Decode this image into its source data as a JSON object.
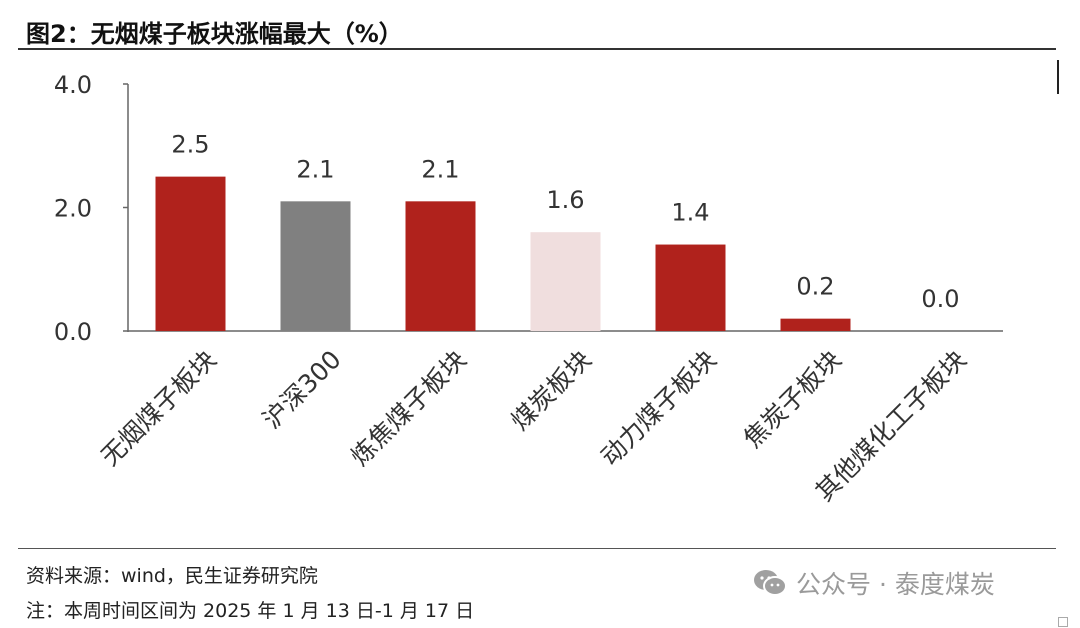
{
  "title": "图2：无烟煤子板块涨幅最大（%）",
  "source": "资料来源：wind，民生证券研究院",
  "note": "注：本周时间区间为 2025 年 1 月 13 日-1 月 17 日",
  "watermark": {
    "icon": "wechat-icon",
    "text": "公众号 · 泰度煤炭"
  },
  "colors": {
    "accent": "#B0221C",
    "benchmark": "#808080",
    "highlight": "#F0DEDE",
    "axis": "#666666"
  },
  "chart_data": {
    "type": "bar",
    "title": "图2：无烟煤子板块涨幅最大（%）",
    "xlabel": "",
    "ylabel": "",
    "ylim": [
      0,
      4
    ],
    "yticks": [
      "0.0",
      "2.0",
      "4.0"
    ],
    "grid": false,
    "legend": "none",
    "categories": [
      "无烟煤子板块",
      "沪深300",
      "炼焦煤子板块",
      "煤炭板块",
      "动力煤子板块",
      "焦炭子板块",
      "其他煤化工子板块"
    ],
    "values": [
      2.5,
      2.1,
      2.1,
      1.6,
      1.4,
      0.2,
      0.0
    ],
    "value_labels": [
      "2.5",
      "2.1",
      "2.1",
      "1.6",
      "1.4",
      "0.2",
      "0.0"
    ],
    "bar_colors": [
      "#B0221C",
      "#808080",
      "#B0221C",
      "#F0DEDE",
      "#B0221C",
      "#B0221C",
      "#B0221C"
    ]
  }
}
